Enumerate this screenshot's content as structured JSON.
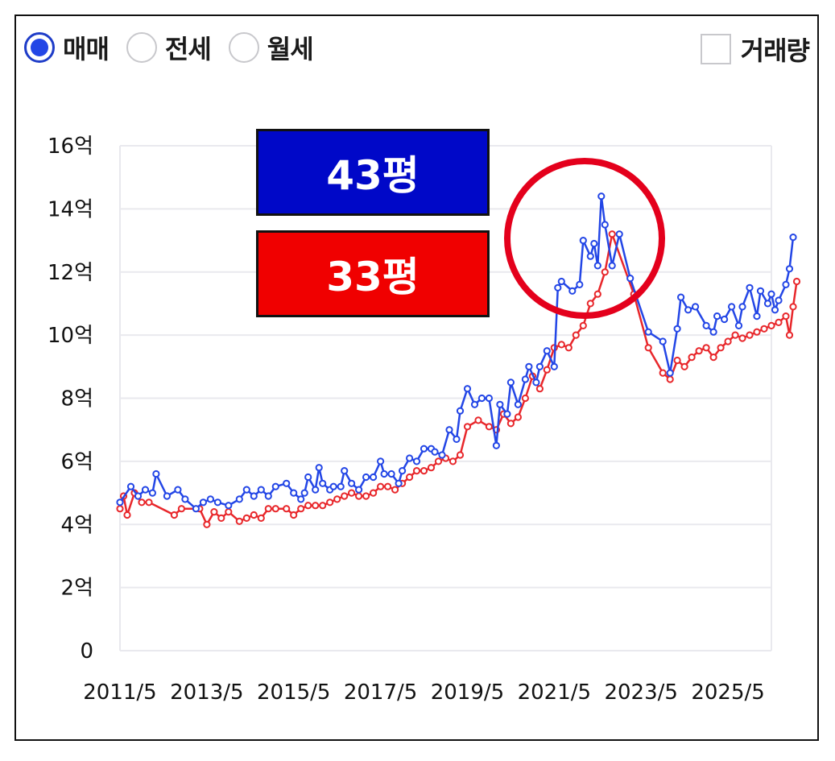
{
  "tabs": [
    {
      "label": "매매",
      "selected": true
    },
    {
      "label": "전세",
      "selected": false
    },
    {
      "label": "월세",
      "selected": false
    }
  ],
  "volume_toggle": {
    "label": "거래량",
    "checked": false
  },
  "annotations": {
    "badge_43": "43평",
    "badge_33": "33평",
    "highlight": "peak circle"
  },
  "colors": {
    "blue_series": "#2346e6",
    "red_series": "#e8272b",
    "badge_blue": "#0008c8",
    "badge_red": "#f00000",
    "circle": "#e4001c"
  },
  "chart_data": {
    "type": "line",
    "title": "",
    "xlabel": "",
    "ylabel": "",
    "ylim": [
      0,
      16
    ],
    "yticks": [
      "0",
      "2억",
      "4억",
      "6억",
      "8억",
      "10억",
      "12억",
      "14억",
      "16억"
    ],
    "xticks": [
      "2011/5",
      "2013/5",
      "2015/5",
      "2017/5",
      "2019/5",
      "2021/5",
      "2023/5",
      "2025/5"
    ],
    "xrange": [
      "2011-05",
      "2026-05"
    ],
    "grid": "horizontal",
    "series": [
      {
        "name": "43평",
        "color": "#2346e6",
        "points": [
          [
            "2011-05",
            4.7
          ],
          [
            "2011-08",
            5.2
          ],
          [
            "2011-10",
            4.9
          ],
          [
            "2011-12",
            5.1
          ],
          [
            "2012-02",
            5.0
          ],
          [
            "2012-03",
            5.6
          ],
          [
            "2012-06",
            4.9
          ],
          [
            "2012-09",
            5.1
          ],
          [
            "2012-11",
            4.8
          ],
          [
            "2013-02",
            4.5
          ],
          [
            "2013-04",
            4.7
          ],
          [
            "2013-06",
            4.8
          ],
          [
            "2013-08",
            4.7
          ],
          [
            "2013-11",
            4.6
          ],
          [
            "2014-02",
            4.8
          ],
          [
            "2014-04",
            5.1
          ],
          [
            "2014-06",
            4.9
          ],
          [
            "2014-08",
            5.1
          ],
          [
            "2014-10",
            4.9
          ],
          [
            "2014-12",
            5.2
          ],
          [
            "2015-03",
            5.3
          ],
          [
            "2015-05",
            5.0
          ],
          [
            "2015-07",
            4.8
          ],
          [
            "2015-08",
            5.0
          ],
          [
            "2015-09",
            5.5
          ],
          [
            "2015-11",
            5.1
          ],
          [
            "2015-12",
            5.8
          ],
          [
            "2016-01",
            5.3
          ],
          [
            "2016-03",
            5.1
          ],
          [
            "2016-04",
            5.2
          ],
          [
            "2016-06",
            5.2
          ],
          [
            "2016-07",
            5.7
          ],
          [
            "2016-09",
            5.3
          ],
          [
            "2016-11",
            5.1
          ],
          [
            "2017-01",
            5.5
          ],
          [
            "2017-03",
            5.5
          ],
          [
            "2017-05",
            6.0
          ],
          [
            "2017-06",
            5.6
          ],
          [
            "2017-08",
            5.6
          ],
          [
            "2017-10",
            5.3
          ],
          [
            "2017-11",
            5.7
          ],
          [
            "2018-01",
            6.1
          ],
          [
            "2018-03",
            6.0
          ],
          [
            "2018-05",
            6.4
          ],
          [
            "2018-07",
            6.4
          ],
          [
            "2018-08",
            6.3
          ],
          [
            "2018-10",
            6.2
          ],
          [
            "2018-12",
            7.0
          ],
          [
            "2019-02",
            6.7
          ],
          [
            "2019-03",
            7.6
          ],
          [
            "2019-05",
            8.3
          ],
          [
            "2019-07",
            7.8
          ],
          [
            "2019-09",
            8.0
          ],
          [
            "2019-11",
            8.0
          ],
          [
            "2020-01",
            6.5
          ],
          [
            "2020-02",
            7.8
          ],
          [
            "2020-04",
            7.5
          ],
          [
            "2020-05",
            8.5
          ],
          [
            "2020-07",
            7.8
          ],
          [
            "2020-09",
            8.6
          ],
          [
            "2020-10",
            9.0
          ],
          [
            "2020-12",
            8.5
          ],
          [
            "2021-01",
            9.0
          ],
          [
            "2021-03",
            9.5
          ],
          [
            "2021-05",
            9.0
          ],
          [
            "2021-06",
            11.5
          ],
          [
            "2021-07",
            11.7
          ],
          [
            "2021-10",
            11.4
          ],
          [
            "2021-12",
            11.6
          ],
          [
            "2022-01",
            13.0
          ],
          [
            "2022-03",
            12.5
          ],
          [
            "2022-04",
            12.9
          ],
          [
            "2022-05",
            12.2
          ],
          [
            "2022-06",
            14.4
          ],
          [
            "2022-07",
            13.5
          ],
          [
            "2022-09",
            12.2
          ],
          [
            "2022-11",
            13.2
          ],
          [
            "2023-02",
            11.8
          ],
          [
            "2023-07",
            10.1
          ],
          [
            "2023-11",
            9.8
          ],
          [
            "2024-01",
            8.8
          ],
          [
            "2024-03",
            10.2
          ],
          [
            "2024-04",
            11.2
          ],
          [
            "2024-06",
            10.8
          ],
          [
            "2024-08",
            10.9
          ],
          [
            "2024-11",
            10.3
          ],
          [
            "2025-01",
            10.1
          ],
          [
            "2025-02",
            10.6
          ],
          [
            "2025-04",
            10.5
          ],
          [
            "2025-06",
            10.9
          ],
          [
            "2025-08",
            10.3
          ],
          [
            "2025-09",
            10.9
          ],
          [
            "2025-11",
            11.5
          ],
          [
            "2026-01",
            10.6
          ],
          [
            "2026-02",
            11.4
          ],
          [
            "2026-04",
            11.0
          ],
          [
            "2026-05",
            11.3
          ],
          [
            "2026-06",
            10.8
          ],
          [
            "2026-07",
            11.1
          ],
          [
            "2026-09",
            11.6
          ],
          [
            "2026-10",
            12.1
          ],
          [
            "2026-11",
            13.1
          ]
        ]
      },
      {
        "name": "33평",
        "color": "#e8272b",
        "points": [
          [
            "2011-05",
            4.5
          ],
          [
            "2011-06",
            4.9
          ],
          [
            "2011-07",
            4.3
          ],
          [
            "2011-09",
            5.0
          ],
          [
            "2011-11",
            4.7
          ],
          [
            "2012-01",
            4.7
          ],
          [
            "2012-08",
            4.3
          ],
          [
            "2012-10",
            4.5
          ],
          [
            "2013-03",
            4.5
          ],
          [
            "2013-05",
            4.0
          ],
          [
            "2013-07",
            4.4
          ],
          [
            "2013-09",
            4.2
          ],
          [
            "2013-11",
            4.4
          ],
          [
            "2014-02",
            4.1
          ],
          [
            "2014-04",
            4.2
          ],
          [
            "2014-06",
            4.3
          ],
          [
            "2014-08",
            4.2
          ],
          [
            "2014-10",
            4.5
          ],
          [
            "2014-12",
            4.5
          ],
          [
            "2015-03",
            4.5
          ],
          [
            "2015-05",
            4.3
          ],
          [
            "2015-07",
            4.5
          ],
          [
            "2015-09",
            4.6
          ],
          [
            "2015-11",
            4.6
          ],
          [
            "2016-01",
            4.6
          ],
          [
            "2016-03",
            4.7
          ],
          [
            "2016-05",
            4.8
          ],
          [
            "2016-07",
            4.9
          ],
          [
            "2016-09",
            5.0
          ],
          [
            "2016-11",
            4.9
          ],
          [
            "2017-01",
            4.9
          ],
          [
            "2017-03",
            5.0
          ],
          [
            "2017-05",
            5.2
          ],
          [
            "2017-07",
            5.2
          ],
          [
            "2017-09",
            5.1
          ],
          [
            "2017-11",
            5.3
          ],
          [
            "2018-01",
            5.5
          ],
          [
            "2018-03",
            5.7
          ],
          [
            "2018-05",
            5.7
          ],
          [
            "2018-07",
            5.8
          ],
          [
            "2018-09",
            6.0
          ],
          [
            "2018-11",
            6.1
          ],
          [
            "2019-01",
            6.0
          ],
          [
            "2019-03",
            6.2
          ],
          [
            "2019-05",
            7.1
          ],
          [
            "2019-08",
            7.3
          ],
          [
            "2019-11",
            7.1
          ],
          [
            "2020-01",
            7.0
          ],
          [
            "2020-03",
            7.5
          ],
          [
            "2020-05",
            7.2
          ],
          [
            "2020-07",
            7.4
          ],
          [
            "2020-09",
            8.0
          ],
          [
            "2020-11",
            8.7
          ],
          [
            "2021-01",
            8.3
          ],
          [
            "2021-03",
            8.9
          ],
          [
            "2021-05",
            9.6
          ],
          [
            "2021-07",
            9.7
          ],
          [
            "2021-09",
            9.6
          ],
          [
            "2021-11",
            10.0
          ],
          [
            "2022-01",
            10.3
          ],
          [
            "2022-03",
            11.0
          ],
          [
            "2022-05",
            11.3
          ],
          [
            "2022-07",
            12.0
          ],
          [
            "2022-09",
            13.2
          ],
          [
            "2023-03",
            11.3
          ],
          [
            "2023-07",
            9.6
          ],
          [
            "2023-11",
            8.8
          ],
          [
            "2024-01",
            8.6
          ],
          [
            "2024-03",
            9.2
          ],
          [
            "2024-05",
            9.0
          ],
          [
            "2024-07",
            9.3
          ],
          [
            "2024-09",
            9.5
          ],
          [
            "2024-11",
            9.6
          ],
          [
            "2025-01",
            9.3
          ],
          [
            "2025-03",
            9.6
          ],
          [
            "2025-05",
            9.8
          ],
          [
            "2025-07",
            10.0
          ],
          [
            "2025-09",
            9.9
          ],
          [
            "2025-11",
            10.0
          ],
          [
            "2026-01",
            10.1
          ],
          [
            "2026-03",
            10.2
          ],
          [
            "2026-05",
            10.3
          ],
          [
            "2026-07",
            10.4
          ],
          [
            "2026-09",
            10.6
          ],
          [
            "2026-10",
            10.0
          ],
          [
            "2026-11",
            10.9
          ],
          [
            "2026-12",
            11.7
          ]
        ]
      }
    ]
  }
}
